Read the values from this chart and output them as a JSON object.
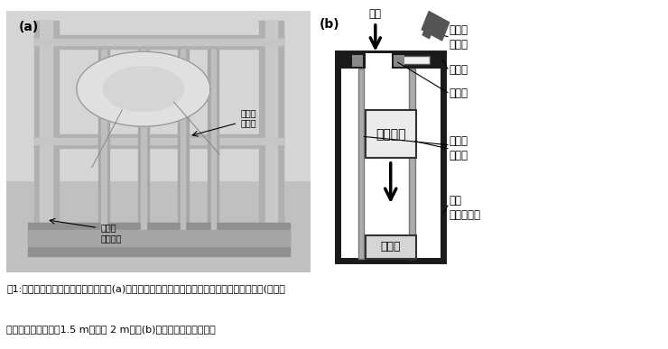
{
  "fig_width": 7.4,
  "fig_height": 3.87,
  "bg_color": "#ffffff",
  "caption_line1": "図1:低重力実験装置のセットアップ　(a)実験チャンバー内に組み立てた落下システムの写真(チャン",
  "caption_line2": "バーのサイズは直径1.5 m、高さ 2 m）　(b)落下システムの概略図",
  "label_a": "(a)",
  "label_b": "(b)",
  "label_bullet": "弾丸",
  "label_camera": "高速度\nカメラ",
  "label_window": "観察窓",
  "label_magnet": "電磁石",
  "label_target": "標的容器",
  "label_guide": "ガイド\nレール",
  "label_buffer": "緩衝材",
  "label_chamber": "実験\nチャンバー",
  "label_guide_photo": "ガイド\nレール",
  "label_frame": "アルミ\nフレーム"
}
